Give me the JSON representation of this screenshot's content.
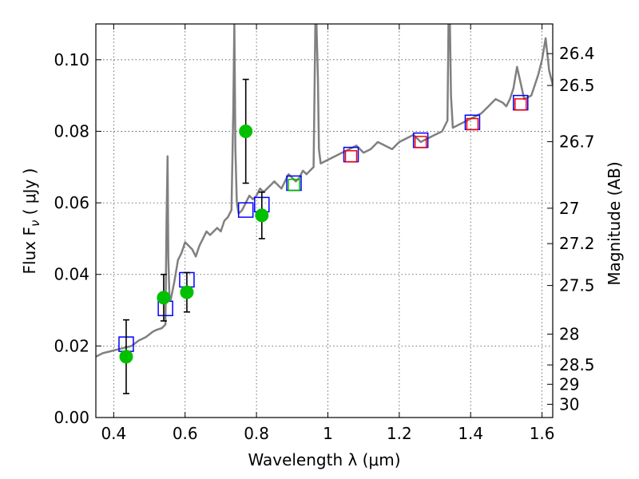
{
  "chart_data": {
    "type": "scatter",
    "xlabel": "Wavelength  λ (μm)",
    "ylabel": "Flux  F",
    "ylabel_sub": "ν",
    "ylabel_unit": "  ( μJy )",
    "y2label": "Magnitude (AB)",
    "xlim": [
      0.35,
      1.63
    ],
    "ylim": [
      0.0,
      0.11
    ],
    "grid": true,
    "x_ticks": [
      0.4,
      0.6,
      0.8,
      1.0,
      1.2,
      1.4,
      1.6
    ],
    "x_tick_labels": [
      "0.4",
      "0.6",
      "0.8",
      "1",
      "1.2",
      "1.4",
      "1.6"
    ],
    "y_ticks": [
      0.0,
      0.02,
      0.04,
      0.06,
      0.08,
      0.1
    ],
    "y_tick_labels": [
      "0.00",
      "0.02",
      "0.04",
      "0.06",
      "0.08",
      "0.10"
    ],
    "mag_ticks": [
      {
        "label": "26.4",
        "flux": 0.1017
      },
      {
        "label": "26.5",
        "flux": 0.0928
      },
      {
        "label": "26.7",
        "flux": 0.0771
      },
      {
        "label": "27",
        "flux": 0.0585
      },
      {
        "label": "27.2",
        "flux": 0.0486
      },
      {
        "label": "27.5",
        "flux": 0.0369
      },
      {
        "label": "28",
        "flux": 0.0233
      },
      {
        "label": "28.5",
        "flux": 0.0147
      },
      {
        "label": "29",
        "flux": 0.0093
      },
      {
        "label": "30",
        "flux": 0.0037
      }
    ],
    "series": [
      {
        "name": "model SED",
        "style": "line",
        "color": "#808080",
        "x": [
          0.35,
          0.37,
          0.39,
          0.41,
          0.43,
          0.45,
          0.47,
          0.49,
          0.51,
          0.52,
          0.535,
          0.545,
          0.548,
          0.551,
          0.553,
          0.556,
          0.56,
          0.57,
          0.58,
          0.59,
          0.6,
          0.61,
          0.62,
          0.63,
          0.64,
          0.65,
          0.66,
          0.67,
          0.68,
          0.69,
          0.7,
          0.71,
          0.72,
          0.73,
          0.735,
          0.738,
          0.741,
          0.745,
          0.75,
          0.76,
          0.77,
          0.78,
          0.79,
          0.8,
          0.81,
          0.82,
          0.83,
          0.84,
          0.85,
          0.86,
          0.87,
          0.88,
          0.89,
          0.9,
          0.91,
          0.92,
          0.93,
          0.94,
          0.95,
          0.96,
          0.965,
          0.968,
          0.972,
          0.975,
          0.98,
          1.0,
          1.02,
          1.04,
          1.06,
          1.08,
          1.1,
          1.12,
          1.14,
          1.16,
          1.18,
          1.2,
          1.22,
          1.24,
          1.26,
          1.28,
          1.3,
          1.32,
          1.335,
          1.338,
          1.342,
          1.345,
          1.35,
          1.37,
          1.39,
          1.41,
          1.43,
          1.45,
          1.47,
          1.49,
          1.5,
          1.51,
          1.52,
          1.53,
          1.55,
          1.57,
          1.58,
          1.59,
          1.6,
          1.61,
          1.62,
          1.63
        ],
        "y": [
          0.017,
          0.018,
          0.0185,
          0.019,
          0.0195,
          0.02,
          0.0215,
          0.0225,
          0.024,
          0.0245,
          0.025,
          0.026,
          0.055,
          0.073,
          0.045,
          0.034,
          0.033,
          0.038,
          0.044,
          0.046,
          0.049,
          0.048,
          0.047,
          0.045,
          0.048,
          0.05,
          0.052,
          0.051,
          0.052,
          0.053,
          0.052,
          0.055,
          0.056,
          0.058,
          0.085,
          0.11,
          0.075,
          0.06,
          0.057,
          0.058,
          0.06,
          0.062,
          0.061,
          0.062,
          0.064,
          0.063,
          0.064,
          0.065,
          0.066,
          0.065,
          0.064,
          0.066,
          0.068,
          0.067,
          0.066,
          0.067,
          0.069,
          0.068,
          0.069,
          0.07,
          0.11,
          0.11,
          0.095,
          0.075,
          0.071,
          0.072,
          0.073,
          0.074,
          0.075,
          0.076,
          0.074,
          0.075,
          0.077,
          0.076,
          0.075,
          0.077,
          0.078,
          0.079,
          0.077,
          0.078,
          0.079,
          0.08,
          0.083,
          0.11,
          0.11,
          0.09,
          0.081,
          0.082,
          0.083,
          0.084,
          0.085,
          0.087,
          0.089,
          0.088,
          0.087,
          0.089,
          0.092,
          0.098,
          0.089,
          0.09,
          0.093,
          0.096,
          0.1,
          0.106,
          0.097,
          0.093
        ]
      },
      {
        "name": "blue model boxes",
        "style": "square",
        "color": "#0000ff",
        "x": [
          0.435,
          0.545,
          0.605,
          0.77,
          0.815,
          0.905,
          1.065,
          1.26,
          1.405,
          1.54
        ],
        "y": [
          0.0205,
          0.0305,
          0.0385,
          0.058,
          0.0595,
          0.0655,
          0.0735,
          0.0775,
          0.0825,
          0.088
        ]
      },
      {
        "name": "red model boxes",
        "style": "square",
        "color": "#ff0000",
        "x": [
          1.065,
          1.26,
          1.405,
          1.54
        ],
        "y": [
          0.073,
          0.077,
          0.082,
          0.0875
        ]
      },
      {
        "name": "green model box",
        "style": "square",
        "color": "#00bb00",
        "x": [
          0.905
        ],
        "y": [
          0.065
        ]
      },
      {
        "name": "observed flux",
        "style": "point-errorbar",
        "color": "#00c000",
        "x": [
          0.435,
          0.54,
          0.605,
          0.77,
          0.815
        ],
        "y": [
          0.017,
          0.0335,
          0.035,
          0.08,
          0.0565
        ],
        "yerr_low": [
          0.0103,
          0.0065,
          0.0055,
          0.0145,
          0.0065
        ],
        "yerr_high": [
          0.0103,
          0.0065,
          0.0055,
          0.0145,
          0.0065
        ]
      }
    ]
  }
}
